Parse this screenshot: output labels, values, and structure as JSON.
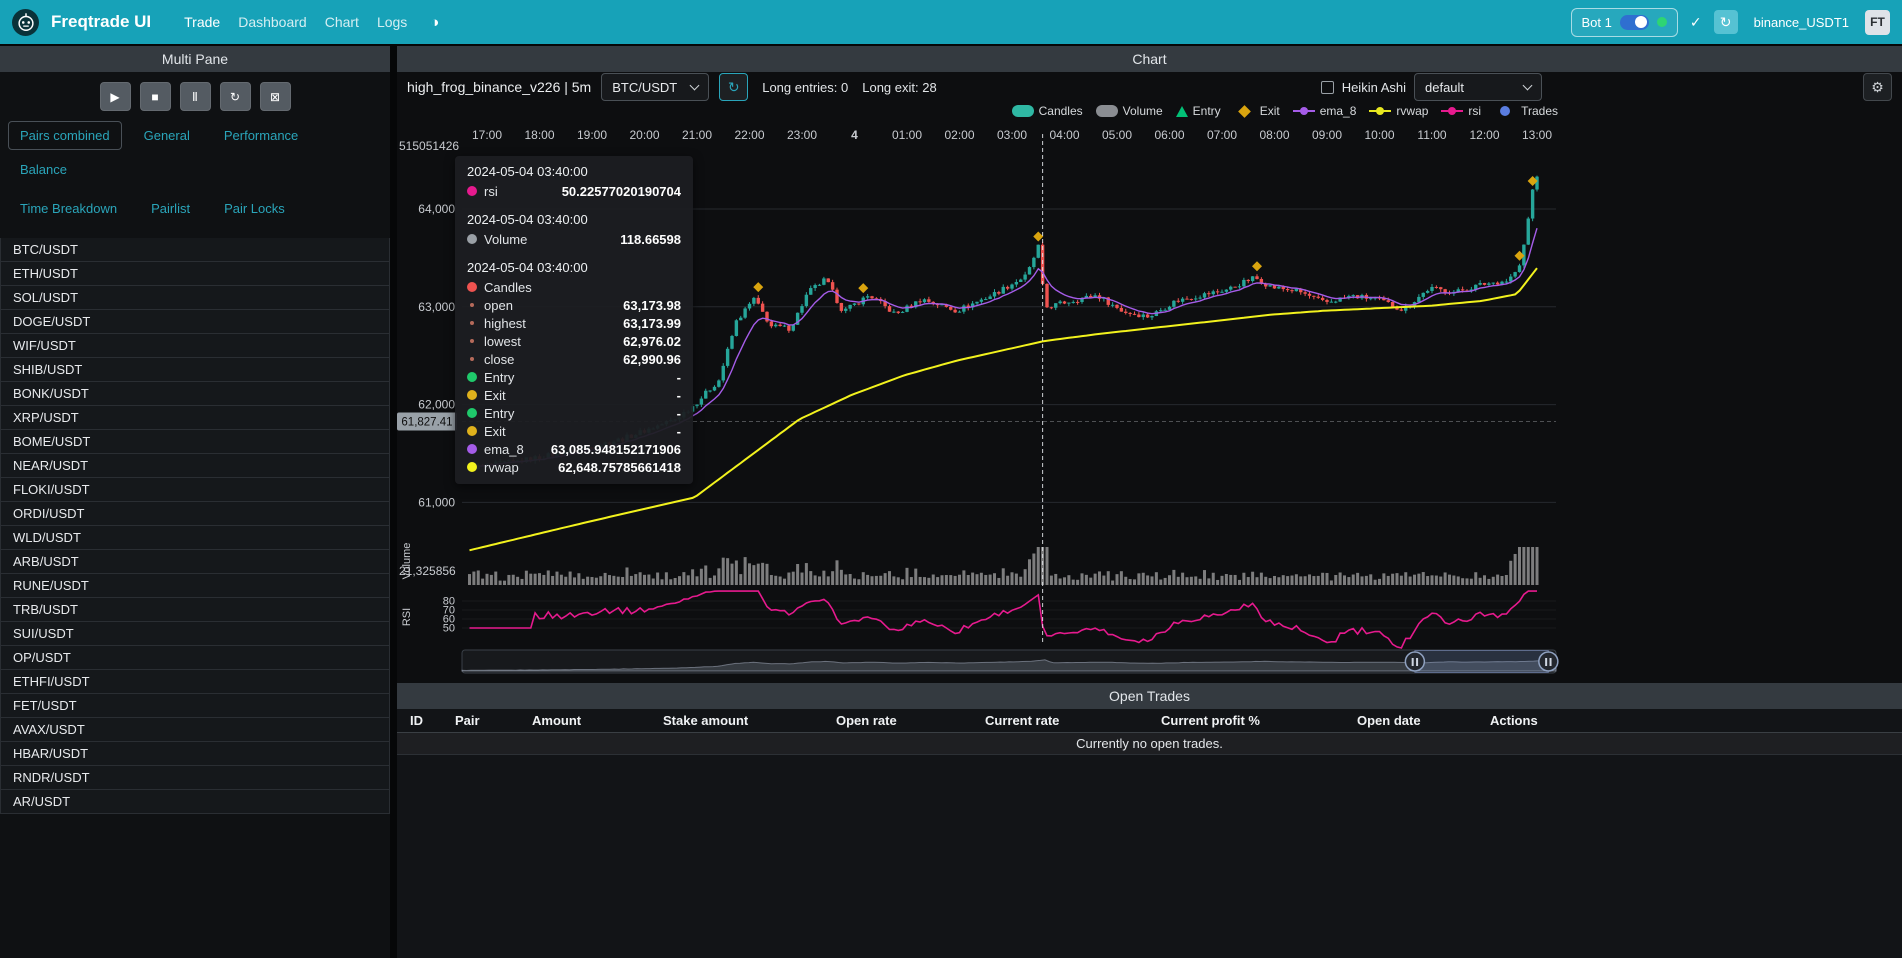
{
  "icons": {
    "play": "▶",
    "stop": "■",
    "pause": "Ⅱ",
    "reload": "↻",
    "cancel": "⊠",
    "gear": "⚙",
    "theme": "◑",
    "check": "✓",
    "refresh": "↻"
  },
  "navbar": {
    "brand": "Freqtrade UI",
    "links": [
      "Trade",
      "Dashboard",
      "Chart",
      "Logs"
    ],
    "bot": {
      "name": "Bot 1"
    },
    "login": "binance_USDT1",
    "avatar": "FT"
  },
  "multipane": {
    "title": "Multi Pane",
    "controls": [
      {
        "name": "start-bot-button",
        "icon": "play"
      },
      {
        "name": "stop-bot-button",
        "icon": "stop"
      },
      {
        "name": "pause-bot-button",
        "icon": "pause"
      },
      {
        "name": "reload-config-button",
        "icon": "reload"
      },
      {
        "name": "cancel-open-orders-button",
        "icon": "cancel"
      }
    ],
    "tabs_row1": [
      "Pairs combined",
      "General",
      "Performance",
      "Balance"
    ],
    "tabs_row2": [
      "Time Breakdown",
      "Pairlist",
      "Pair Locks"
    ],
    "active_tab": "Pairs combined",
    "pairs": [
      "BTC/USDT",
      "ETH/USDT",
      "SOL/USDT",
      "DOGE/USDT",
      "WIF/USDT",
      "SHIB/USDT",
      "BONK/USDT",
      "XRP/USDT",
      "BOME/USDT",
      "NEAR/USDT",
      "FLOKI/USDT",
      "ORDI/USDT",
      "WLD/USDT",
      "ARB/USDT",
      "RUNE/USDT",
      "TRB/USDT",
      "SUI/USDT",
      "OP/USDT",
      "ETHFI/USDT",
      "FET/USDT",
      "AVAX/USDT",
      "HBAR/USDT",
      "RNDR/USDT",
      "AR/USDT"
    ]
  },
  "chart_panel": {
    "title": "Chart",
    "strategy": "high_frog_binance_v226 | 5m",
    "pair": "BTC/USDT",
    "entries_label": "Long entries: 0",
    "exits_label": "Long exit: 28",
    "heikin_ashi_label": "Heikin Ashi",
    "plot_config": "default",
    "legend": [
      {
        "label": "Candles",
        "shape": "pill",
        "color": "#2fb8a4"
      },
      {
        "label": "Volume",
        "shape": "pill",
        "color": "#8a8d92"
      },
      {
        "label": "Entry",
        "shape": "triangle",
        "color": "#02c076"
      },
      {
        "label": "Exit",
        "shape": "diamond",
        "color": "#d9a40f"
      },
      {
        "label": "ema_8",
        "shape": "line",
        "color": "#a55ce8"
      },
      {
        "label": "rvwap",
        "shape": "line",
        "color": "#e8e820"
      },
      {
        "label": "rsi",
        "shape": "line",
        "color": "#e61a8e"
      },
      {
        "label": "Trades",
        "shape": "circle",
        "color": "#5a7de0"
      }
    ],
    "axes": {
      "trades_axis_label": "515051426",
      "volume_axis_label": "21,325856",
      "volume_title": "Volume",
      "rsi_title": "RSI",
      "pointer_price": "61,827.41",
      "pointer_value": 61827.41,
      "price_ticks": [
        {
          "label": "64,000",
          "value": 64000
        },
        {
          "label": "63,000",
          "value": 63000
        },
        {
          "label": "62,000",
          "value": 62000
        },
        {
          "label": "61,000",
          "value": 61000
        }
      ],
      "rsi_ticks": [
        {
          "label": "80",
          "value": 80
        },
        {
          "label": "70",
          "value": 70
        },
        {
          "label": "60",
          "value": 60
        },
        {
          "label": "50",
          "value": 50
        }
      ],
      "x_ticks": [
        {
          "label": "17:00",
          "i": 4
        },
        {
          "label": "18:00",
          "i": 16
        },
        {
          "label": "19:00",
          "i": 28
        },
        {
          "label": "20:00",
          "i": 40
        },
        {
          "label": "21:00",
          "i": 52
        },
        {
          "label": "22:00",
          "i": 64
        },
        {
          "label": "23:00",
          "i": 76
        },
        {
          "label": "4",
          "i": 88,
          "bold": true
        },
        {
          "label": "01:00",
          "i": 100
        },
        {
          "label": "02:00",
          "i": 112
        },
        {
          "label": "03:00",
          "i": 124
        },
        {
          "label": "04:00",
          "i": 136
        },
        {
          "label": "05:00",
          "i": 148
        },
        {
          "label": "06:00",
          "i": 160
        },
        {
          "label": "07:00",
          "i": 172
        },
        {
          "label": "08:00",
          "i": 184
        },
        {
          "label": "09:00",
          "i": 196
        },
        {
          "label": "10:00",
          "i": 208
        },
        {
          "label": "11:00",
          "i": 220
        },
        {
          "label": "12:00",
          "i": 232
        },
        {
          "label": "13:00",
          "i": 244
        }
      ]
    },
    "tooltip": {
      "sections": [
        {
          "date": "2024-05-04 03:40:00",
          "rows": [
            {
              "dot": "#e61a8e",
              "label": "rsi",
              "value": "50.22577020190704"
            }
          ]
        },
        {
          "date": "2024-05-04 03:40:00",
          "rows": [
            {
              "dot": "#9aa0a6",
              "label": "Volume",
              "value": "118.66598"
            }
          ]
        },
        {
          "date": "2024-05-04 03:40:00",
          "rows": [
            {
              "dot": "#ef5350",
              "label": "Candles",
              "value": ""
            },
            {
              "dot": "#b56a5a",
              "small": true,
              "label": "open",
              "value": "63,173.98"
            },
            {
              "dot": "#b56a5a",
              "small": true,
              "label": "highest",
              "value": "63,173.99"
            },
            {
              "dot": "#b56a5a",
              "small": true,
              "label": "lowest",
              "value": "62,976.02"
            },
            {
              "dot": "#b56a5a",
              "small": true,
              "label": "close",
              "value": "62,990.96"
            },
            {
              "dot": "#1fc96b",
              "label": "Entry",
              "value": "-"
            },
            {
              "dot": "#dfb11c",
              "label": "Exit",
              "value": "-"
            },
            {
              "dot": "#1fc96b",
              "label": "Entry",
              "value": "-"
            },
            {
              "dot": "#dfb11c",
              "label": "Exit",
              "value": "-"
            },
            {
              "dot": "#a55ce8",
              "label": "ema_8",
              "value": "63,085.948152171906"
            },
            {
              "dot": "#f2f21d",
              "label": "rvwap",
              "value": "62,648.75785661418"
            }
          ]
        }
      ]
    }
  },
  "chart_data": {
    "type": "candlestick",
    "timeframe": "5m",
    "pair": "BTC/USDT",
    "candle_count": 245,
    "x_start": "2024-05-03 16:40",
    "x_end": "2024-05-04 13:05",
    "crosshair_index": 131,
    "price_anchors": [
      [
        0,
        61350
      ],
      [
        60,
        61420
      ],
      [
        120,
        61520
      ],
      [
        180,
        61650
      ],
      [
        240,
        61850
      ],
      [
        262,
        62000
      ],
      [
        290,
        62250
      ],
      [
        310,
        62850
      ],
      [
        330,
        63080
      ],
      [
        350,
        62800
      ],
      [
        372,
        62780
      ],
      [
        392,
        63150
      ],
      [
        412,
        63280
      ],
      [
        432,
        62950
      ],
      [
        462,
        63120
      ],
      [
        492,
        62920
      ],
      [
        522,
        63080
      ],
      [
        562,
        62960
      ],
      [
        602,
        63120
      ],
      [
        642,
        63320
      ],
      [
        656,
        63640
      ],
      [
        662,
        62990
      ],
      [
        692,
        63060
      ],
      [
        722,
        63120
      ],
      [
        752,
        62950
      ],
      [
        782,
        62900
      ],
      [
        812,
        63060
      ],
      [
        842,
        63120
      ],
      [
        872,
        63180
      ],
      [
        902,
        63300
      ],
      [
        922,
        63200
      ],
      [
        952,
        63160
      ],
      [
        982,
        63040
      ],
      [
        1012,
        63110
      ],
      [
        1042,
        63080
      ],
      [
        1072,
        62970
      ],
      [
        1102,
        63190
      ],
      [
        1132,
        63150
      ],
      [
        1162,
        63230
      ],
      [
        1192,
        63270
      ],
      [
        1206,
        63420
      ],
      [
        1216,
        63950
      ],
      [
        1223,
        64380
      ],
      [
        1228,
        64300
      ]
    ],
    "rvwap_anchors": [
      [
        0,
        60500
      ],
      [
        140,
        60800
      ],
      [
        262,
        61050
      ],
      [
        322,
        61450
      ],
      [
        382,
        61850
      ],
      [
        442,
        62100
      ],
      [
        502,
        62300
      ],
      [
        562,
        62450
      ],
      [
        622,
        62570
      ],
      [
        662,
        62650
      ],
      [
        722,
        62720
      ],
      [
        802,
        62800
      ],
      [
        862,
        62860
      ],
      [
        922,
        62920
      ],
      [
        982,
        62960
      ],
      [
        1042,
        62985
      ],
      [
        1102,
        63010
      ],
      [
        1162,
        63060
      ],
      [
        1202,
        63130
      ],
      [
        1228,
        63430
      ]
    ],
    "exit_marker_indices": [
      66,
      90,
      130,
      180,
      240,
      243
    ],
    "zoom": {
      "start": 0.871,
      "end": 0.993
    },
    "colors": {
      "up": "#26a69a",
      "down": "#ef5350",
      "ema_8": "#a55ce8",
      "rvwap": "#f2f21d",
      "rsi": "#e61a8e",
      "volume": "#9a9a9a",
      "exit": "#d9a40f",
      "grid": "#26292e",
      "axis_text": "#c8cbd0"
    }
  },
  "open_trades": {
    "title": "Open Trades",
    "columns": [
      "ID",
      "Pair",
      "Amount",
      "Stake amount",
      "Open rate",
      "Current rate",
      "Current profit %",
      "Open date",
      "Actions"
    ],
    "empty_message": "Currently no open trades."
  }
}
